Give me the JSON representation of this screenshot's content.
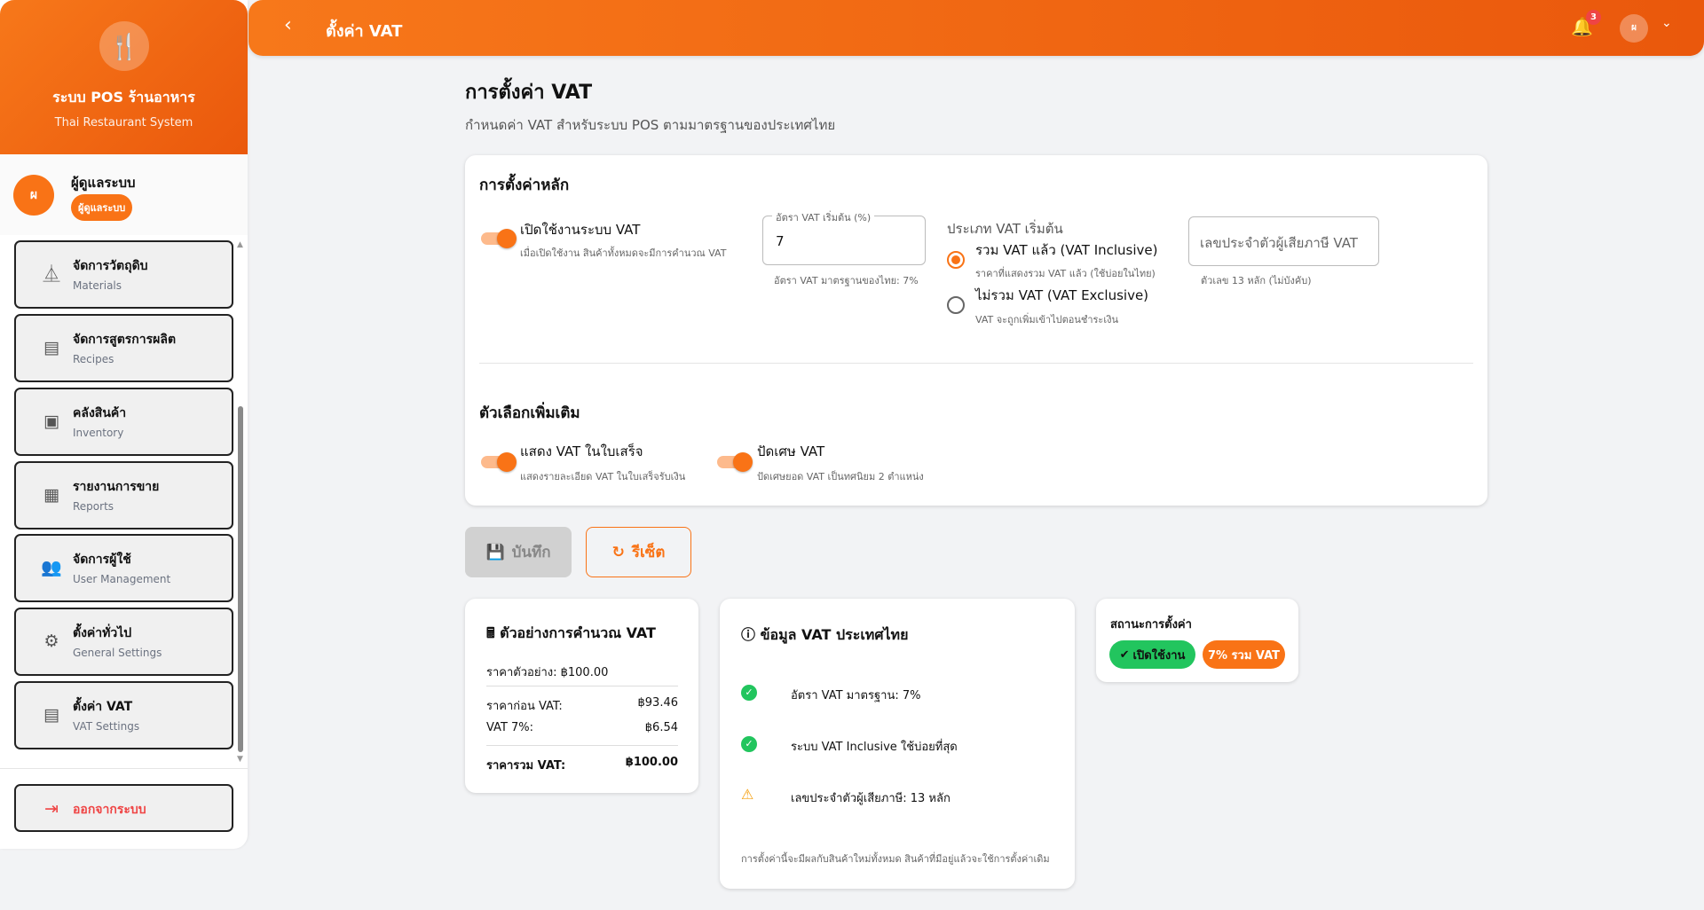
{
  "brand": {
    "title": "ระบบ POS ร้านอาหาร",
    "subtitle": "Thai Restaurant System",
    "icon": "utensils-icon"
  },
  "user": {
    "initial": "ผ",
    "name": "ผู้ดูแลระบบ",
    "role": "ผู้ดูแลระบบ"
  },
  "sidebar": {
    "items": [
      {
        "label": "จัดการวัตถุดิบ",
        "sub": "Materials",
        "icon": "flask-icon"
      },
      {
        "label": "จัดการสูตรการผลิต",
        "sub": "Recipes",
        "icon": "receipt-icon"
      },
      {
        "label": "คลังสินค้า",
        "sub": "Inventory",
        "icon": "archive-icon"
      },
      {
        "label": "รายงานการขาย",
        "sub": "Reports",
        "icon": "chart-icon"
      },
      {
        "label": "จัดการผู้ใช้",
        "sub": "User Management",
        "icon": "users-icon"
      },
      {
        "label": "ตั้งค่าทั่วไป",
        "sub": "General Settings",
        "icon": "gear-icon"
      },
      {
        "label": "ตั้งค่า VAT",
        "sub": "VAT Settings",
        "icon": "receipt-icon"
      }
    ],
    "logout": "ออกจากระบบ"
  },
  "topbar": {
    "title": "ตั้งค่า VAT",
    "notifications": "3",
    "avatar": "ผ"
  },
  "page": {
    "title": "การตั้งค่า VAT",
    "subtitle": "กำหนดค่า VAT สำหรับระบบ POS ตามมาตรฐานของประเทศไทย"
  },
  "main": {
    "heading": "การตั้งค่าหลัก",
    "enable": {
      "label": "เปิดใช้งานระบบ VAT",
      "hint": "เมื่อเปิดใช้งาน สินค้าทั้งหมดจะมีการคำนวณ VAT",
      "on": true
    },
    "rate": {
      "legend": "อัตรา VAT เริ่มต้น (%)",
      "value": "7",
      "hint": "อัตรา VAT มาตรฐานของไทย: 7%"
    },
    "type": {
      "label": "ประเภท VAT เริ่มต้น",
      "options": [
        {
          "label": "รวม VAT แล้ว (VAT Inclusive)",
          "hint": "ราคาที่แสดงรวม VAT แล้ว (ใช้บ่อยในไทย)",
          "selected": true
        },
        {
          "label": "ไม่รวม VAT (VAT Exclusive)",
          "hint": "VAT จะถูกเพิ่มเข้าไปตอนชำระเงิน",
          "selected": false
        }
      ]
    },
    "taxid": {
      "placeholder": "เลขประจำตัวผู้เสียภาษี VAT",
      "hint": "ตัวเลข 13 หลัก (ไม่บังคับ)"
    },
    "extra_heading": "ตัวเลือกเพิ่มเติม",
    "show_receipt": {
      "label": "แสดง VAT ในใบเสร็จ",
      "hint": "แสดงรายละเอียด VAT ในใบเสร็จรับเงิน",
      "on": true
    },
    "rounding": {
      "label": "ปัดเศษ VAT",
      "hint": "ปัดเศษยอด VAT เป็นทศนิยม 2 ตำแหน่ง",
      "on": true
    }
  },
  "actions": {
    "save": "บันทึก",
    "reset": "รีเซ็ต"
  },
  "calc": {
    "title": "ตัวอย่างการคำนวณ VAT",
    "sample": "ราคาตัวอย่าง: ฿100.00",
    "rows": [
      {
        "label": "ราคาก่อน VAT:",
        "value": "฿93.46"
      },
      {
        "label": "VAT 7%:",
        "value": "฿6.54"
      }
    ],
    "total": {
      "label": "ราคารวม VAT:",
      "value": "฿100.00"
    }
  },
  "info": {
    "title": "ข้อมูล VAT ประเทศไทย",
    "items": [
      {
        "text": "อัตรา VAT มาตรฐาน: 7%",
        "icon": "check-circle-icon"
      },
      {
        "text": "ระบบ VAT Inclusive ใช้บ่อยที่สุด",
        "icon": "check-circle-icon"
      },
      {
        "text": "เลขประจำตัวผู้เสียภาษี: 13 หลัก",
        "icon": "warning-icon"
      }
    ],
    "note": "การตั้งค่านี้จะมีผลกับสินค้าใหม่ทั้งหมด สินค้าที่มีอยู่แล้วจะใช้การตั้งค่าเดิม"
  },
  "status": {
    "title": "สถานะการตั้งค่า",
    "enabled": "เปิดใช้งาน",
    "mode": "7% รวม VAT"
  },
  "colors": {
    "accent": "#f97316",
    "success": "#22c55e",
    "danger": "#ef4444"
  }
}
